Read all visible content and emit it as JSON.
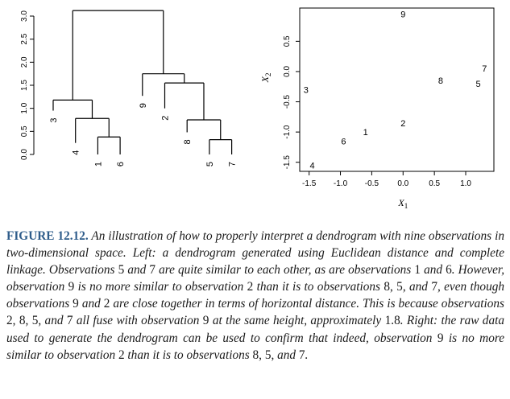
{
  "figure": {
    "left_panel": {
      "type": "dendrogram",
      "y_axis_ticks": [
        "0.0",
        "0.5",
        "1.0",
        "1.5",
        "2.0",
        "2.5",
        "3.0"
      ],
      "leaves": [
        "3",
        "4",
        "1",
        "6",
        "9",
        "2",
        "8",
        "5",
        "7"
      ]
    },
    "right_panel": {
      "type": "scatter",
      "xlabel": "X",
      "xlabel_sub": "1",
      "ylabel": "X",
      "ylabel_sub": "2",
      "x_ticks": [
        "-1.5",
        "-1.0",
        "-0.5",
        "0.0",
        "0.5",
        "1.0"
      ],
      "y_ticks": [
        "-1.5",
        "-1.0",
        "-0.5",
        "0.0",
        "0.5"
      ]
    }
  },
  "chart_data": [
    {
      "type": "dendrogram",
      "ylim": [
        0,
        3.0
      ],
      "leaf_order": [
        "3",
        "4",
        "1",
        "6",
        "9",
        "2",
        "8",
        "5",
        "7"
      ],
      "leaf_heights": [
        0.95,
        0.25,
        0.0,
        0.0,
        1.27,
        1.0,
        0.48,
        0.0,
        0.0
      ],
      "merges": [
        {
          "left": "1",
          "right": "6",
          "height": 0.38
        },
        {
          "left": "5",
          "right": "7",
          "height": 0.32
        },
        {
          "left": "4",
          "right": "1,6",
          "height": 0.78
        },
        {
          "left": "8",
          "right": "5,7",
          "height": 0.75
        },
        {
          "left": "3",
          "right": "4,1,6",
          "height": 1.18
        },
        {
          "left": "2",
          "right": "8,5,7",
          "height": 1.55
        },
        {
          "left": "9",
          "right": "2,8,5,7",
          "height": 1.75
        },
        {
          "left": "3,4,1,6",
          "right": "9,2,8,5,7",
          "height": 3.12
        }
      ]
    },
    {
      "type": "scatter",
      "xlim": [
        -1.65,
        1.45
      ],
      "ylim": [
        -1.65,
        1.05
      ],
      "points": [
        {
          "label": "1",
          "x": -0.6,
          "y": -1.0
        },
        {
          "label": "2",
          "x": 0.0,
          "y": -0.85
        },
        {
          "label": "3",
          "x": -1.55,
          "y": -0.3
        },
        {
          "label": "4",
          "x": -1.45,
          "y": -1.55
        },
        {
          "label": "5",
          "x": 1.2,
          "y": -0.2
        },
        {
          "label": "6",
          "x": -0.95,
          "y": -1.15
        },
        {
          "label": "7",
          "x": 1.3,
          "y": 0.05
        },
        {
          "label": "8",
          "x": 0.6,
          "y": -0.15
        },
        {
          "label": "9",
          "x": 0.0,
          "y": 0.95
        }
      ]
    }
  ],
  "caption": {
    "label": "FIGURE 12.12.",
    "p1": " An illustration of how to properly interpret a dendrogram with nine observations in two-dimensional space. Left: ",
    "p2": "a dendrogram generated using Euclidean distance and complete linkage. Observations ",
    "n1": "5",
    "p3": " and ",
    "n2": "7",
    "p4": " are quite similar to each other, as are observations ",
    "n3": "1",
    "p5": " and ",
    "n4": "6",
    "p6": ". However, observation ",
    "n5": "9",
    "p7": " is no more similar to observation ",
    "n6": "2",
    "p8": " than it is to observations ",
    "n7": "8, 5,",
    "p9": " and ",
    "n8": "7",
    "p10": ", even though observations ",
    "n9": "9",
    "p11": " and ",
    "n10": "2",
    "p12": " are close together in terms of horizontal distance. This is because observations ",
    "n11": "2, 8, 5,",
    "p13": " and ",
    "n12": "7",
    "p14": " all fuse with observation ",
    "n13": "9",
    "p15": " at the same height, approximately ",
    "n14": "1.8",
    "p16": ". Right: ",
    "p17": "the raw data used to generate the dendrogram can be used to confirm that indeed, observation ",
    "n15": "9",
    "p18": " is no more similar to observation ",
    "n16": "2",
    "p19": " than it is to observations ",
    "n17": "8, 5,",
    "p20": " and ",
    "n18": "7",
    "p21": "."
  }
}
